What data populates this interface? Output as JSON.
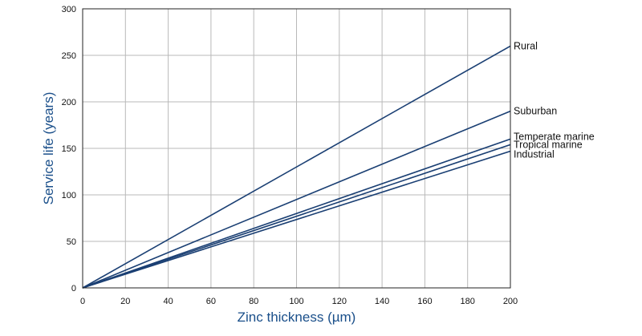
{
  "chart_data": {
    "type": "line",
    "title": "",
    "xlabel": "Zinc thickness (µm)",
    "ylabel": "Service life (years)",
    "xlim": [
      0,
      200
    ],
    "ylim": [
      0,
      300
    ],
    "xticks": [
      0,
      20,
      40,
      60,
      80,
      100,
      120,
      140,
      160,
      180,
      200
    ],
    "yticks": [
      0,
      50,
      100,
      150,
      200,
      250,
      300
    ],
    "grid": true,
    "legend": "inline-right",
    "line_color": "#1a3f73",
    "series": [
      {
        "name": "Rural",
        "x": [
          0,
          200
        ],
        "y": [
          0,
          260
        ]
      },
      {
        "name": "Suburban",
        "x": [
          0,
          200
        ],
        "y": [
          0,
          190
        ]
      },
      {
        "name": "Temperate marine",
        "x": [
          0,
          200
        ],
        "y": [
          0,
          160
        ]
      },
      {
        "name": "Tropical marine",
        "x": [
          0,
          200
        ],
        "y": [
          0,
          154
        ]
      },
      {
        "name": "Industrial",
        "x": [
          0,
          200
        ],
        "y": [
          0,
          147
        ]
      }
    ]
  }
}
